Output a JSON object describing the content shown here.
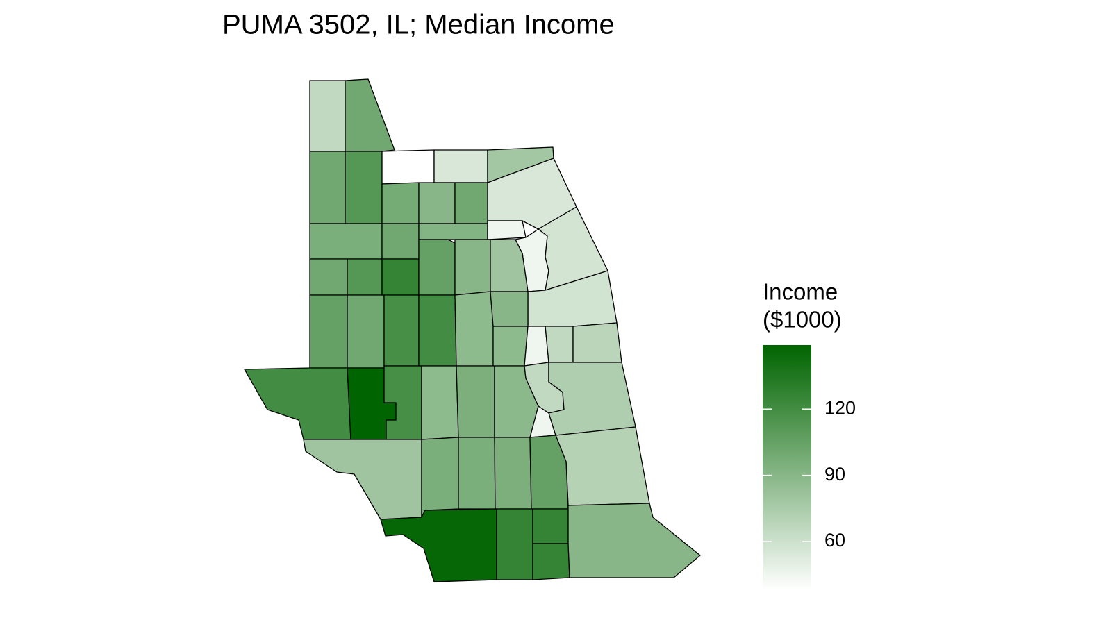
{
  "chart_data": {
    "type": "choropleth",
    "title": "PUMA 3502, IL; Median Income",
    "legend_title": [
      "Income",
      "($1000)"
    ],
    "values": [
      65,
      100,
      100,
      112,
      38,
      55,
      78,
      55,
      98,
      90,
      100,
      96,
      100,
      92,
      45,
      45,
      57,
      100,
      112,
      126,
      105,
      90,
      80,
      58,
      105,
      100,
      118,
      120,
      87,
      90,
      87,
      45,
      65,
      68,
      120,
      149,
      118,
      87,
      95,
      88,
      65,
      45,
      73,
      70,
      80,
      96,
      96,
      95,
      105,
      147,
      126,
      126,
      126,
      90
    ],
    "low_color": "#ffffff",
    "high_color": "#006400",
    "fill_lim": [
      38,
      149
    ],
    "fill_ticks": [
      60,
      90,
      120
    ]
  }
}
